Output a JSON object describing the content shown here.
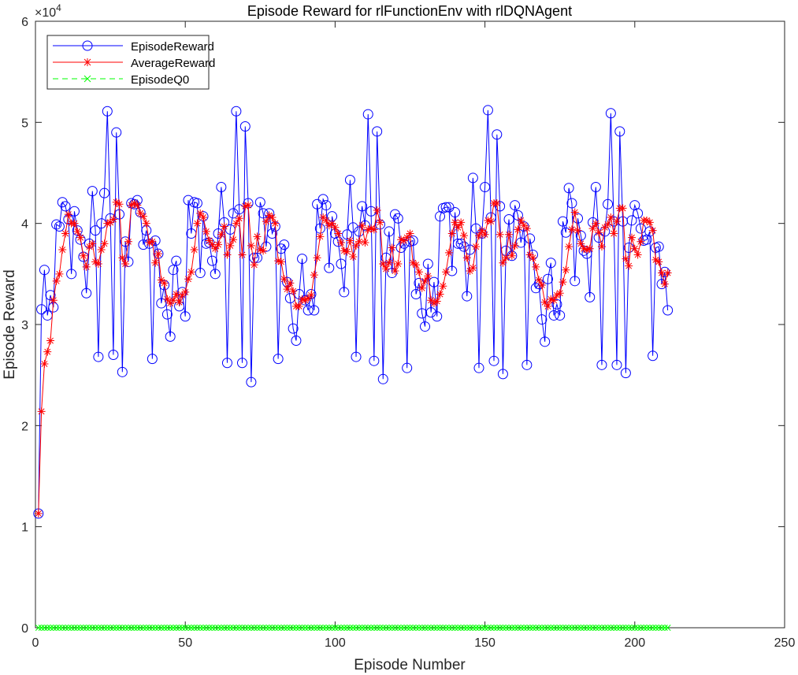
{
  "chart_data": {
    "type": "line",
    "title": "Episode Reward for rlFunctionEnv with rlDQNAgent",
    "xlabel": "Episode Number",
    "ylabel": "Episode Reward",
    "xlim": [
      0,
      250
    ],
    "ylim": [
      0,
      60000
    ],
    "xticks": [
      "0",
      "50",
      "100",
      "150",
      "200",
      "250"
    ],
    "yticks": [
      "0",
      "1",
      "2",
      "3",
      "4",
      "5",
      "6"
    ],
    "y_exponent_label": "×10",
    "y_exponent_power": "4",
    "grid": false,
    "legend_position": "top-left",
    "series": [
      {
        "name": "EpisodeReward",
        "color": "#0000ff",
        "marker": "circle",
        "values": [
          11300,
          31500,
          35400,
          30900,
          32900,
          31700,
          39900,
          39700,
          42100,
          41700,
          40400,
          35000,
          41200,
          39300,
          38400,
          36700,
          33100,
          38000,
          43200,
          39300,
          26800,
          40000,
          43000,
          51100,
          40500,
          27000,
          49000,
          40900,
          25300,
          38200,
          36200,
          42000,
          41900,
          42300,
          41100,
          37900,
          39300,
          38000,
          26600,
          38300,
          37000,
          32100,
          33900,
          31000,
          28800,
          35400,
          36300,
          31800,
          33200,
          30800,
          42300,
          39000,
          42100,
          42000,
          35100,
          40700,
          38000,
          38100,
          36300,
          35000,
          39000,
          43600,
          40100,
          26200,
          39400,
          41000,
          51100,
          41400,
          26200,
          49600,
          42000,
          24300,
          36600,
          36600,
          42100,
          41000,
          37700,
          41000,
          39000,
          39700,
          26600,
          37500,
          37900,
          34200,
          32600,
          29600,
          28400,
          33000,
          36500,
          32400,
          31400,
          33000,
          31400,
          41900,
          39500,
          42400,
          41800,
          35600,
          40700,
          39000,
          38200,
          36000,
          33200,
          38900,
          44300,
          39600,
          26800,
          39200,
          41700,
          39800,
          50800,
          41200,
          26400,
          49100,
          39900,
          24600,
          36600,
          39200,
          35100,
          40900,
          40500,
          37600,
          38000,
          25700,
          38200,
          38300,
          33000,
          34100,
          31100,
          29800,
          36000,
          31200,
          34200,
          30800,
          40700,
          41500,
          41600,
          41600,
          35300,
          41100,
          38000,
          38000,
          37700,
          32800,
          37400,
          44500,
          39500,
          25700,
          39000,
          43600,
          51200,
          40600,
          26400,
          48800,
          41700,
          25100,
          37300,
          40400,
          36800,
          41800,
          40800,
          38100,
          39700,
          26000,
          38500,
          36900,
          33600,
          34000,
          30500,
          28300,
          34500,
          36100,
          30900,
          32000,
          30900,
          40200,
          39100,
          43500,
          42000,
          34300,
          40500,
          38800,
          37300,
          37000,
          32700,
          40100,
          43600,
          38600,
          26000,
          39200,
          41900,
          50900,
          40200,
          26000,
          49100,
          40200,
          25200,
          37600,
          40300,
          41800,
          41000,
          39500,
          38300,
          38400,
          39200,
          26900,
          37600,
          37700,
          34000,
          35200,
          31400
        ]
      },
      {
        "name": "AverageReward",
        "color": "#ff0000",
        "marker": "asterisk",
        "values": [
          11300,
          21400,
          26100,
          27300,
          28400,
          32400,
          34300,
          35000,
          37400,
          39000,
          40900,
          40000,
          40000,
          39200,
          38600,
          36800,
          35700,
          37700,
          38000,
          36200,
          36000,
          37400,
          38000,
          40000,
          40100,
          40400,
          42100,
          41900,
          36600,
          36000,
          38200,
          41800,
          42000,
          41800,
          41000,
          40700,
          40000,
          38100,
          38200,
          36100,
          37000,
          34400,
          34100,
          32500,
          32100,
          32400,
          33000,
          32200,
          32900,
          33200,
          34500,
          35200,
          37400,
          40000,
          41000,
          40600,
          39200,
          38300,
          37900,
          37500,
          37900,
          38900,
          39700,
          36900,
          37800,
          38400,
          40000,
          40500,
          36900,
          41700,
          41800,
          37800,
          35900,
          38700,
          37400,
          37300,
          40200,
          40800,
          40600,
          40000,
          36300,
          36200,
          34500,
          33500,
          34100,
          33300,
          31800,
          31800,
          32500,
          32400,
          32600,
          32900,
          34900,
          36600,
          38700,
          40600,
          40300,
          39800,
          40000,
          39600,
          39000,
          38100,
          37300,
          37200,
          38300,
          36700,
          37800,
          38200,
          39800,
          38100,
          39400,
          39500,
          39400,
          41300,
          40100,
          36000,
          35500,
          36100,
          37600,
          35300,
          36000,
          38400,
          38300,
          38600,
          39000,
          36100,
          35900,
          35200,
          33600,
          34300,
          34800,
          32400,
          32100,
          32300,
          33000,
          33800,
          35200,
          37100,
          39000,
          40100,
          39600,
          40100,
          38800,
          36600,
          35300,
          35600,
          37700,
          38800,
          39300,
          38900,
          40300,
          40200,
          42000,
          42000,
          38900,
          36100,
          36600,
          38900,
          36800,
          37800,
          39400,
          40300,
          39800,
          39500,
          36900,
          36600,
          35700,
          34400,
          33900,
          32200,
          31800,
          32500,
          32400,
          32900,
          33100,
          34200,
          35400,
          37700,
          39400,
          41100,
          39300,
          38000,
          37500,
          37400,
          37500,
          39500,
          40000,
          39100,
          37700,
          39600,
          39900,
          40600,
          39000,
          40200,
          41500,
          41500,
          36500,
          35800,
          38600,
          37500,
          36900,
          38200,
          40300,
          40300,
          40100,
          39300,
          36400,
          36200,
          35100,
          34000,
          35100
        ]
      },
      {
        "name": "EpisodeQ0",
        "color": "#00ff00",
        "marker": "x",
        "line_style": "dashed",
        "values": "all zero (0 for every episode 1–215)"
      }
    ]
  }
}
